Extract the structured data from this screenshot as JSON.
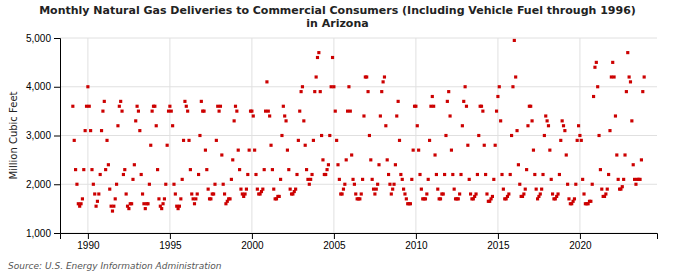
{
  "chart_data": {
    "type": "scatter",
    "title": "Monthly Natural Gas Deliveries to Commercial Consumers (Including Vehicle Fuel through 1996)\nin Arizona",
    "ylabel": "Million Cubic Feet",
    "annotations": [
      "Source: U.S. Energy Information Administration"
    ],
    "color": "#cc0000",
    "marker": "square",
    "grid": true,
    "xlim": [
      1988.3,
      2024.7
    ],
    "xticks": [
      1990,
      1995,
      2000,
      2005,
      2010,
      2015,
      2020
    ],
    "ylim": [
      1000,
      5000
    ],
    "yticks": [
      {
        "value": 1000,
        "label": "1,000"
      },
      {
        "value": 2000,
        "label": "2,000"
      },
      {
        "value": 3000,
        "label": "3,000"
      },
      {
        "value": 4000,
        "label": "4,000"
      },
      {
        "value": 5000,
        "label": "5,000"
      }
    ],
    "x": [
      1989.083,
      1989.167,
      1989.25,
      1989.333,
      1989.417,
      1989.5,
      1989.583,
      1989.667,
      1989.75,
      1989.833,
      1989.917,
      1990.0,
      1990.083,
      1990.167,
      1990.25,
      1990.333,
      1990.417,
      1990.5,
      1990.583,
      1990.667,
      1990.75,
      1990.833,
      1990.917,
      1991.0,
      1991.083,
      1991.167,
      1991.25,
      1991.333,
      1991.417,
      1991.5,
      1991.583,
      1991.667,
      1991.75,
      1991.833,
      1991.917,
      1992.0,
      1992.083,
      1992.167,
      1992.25,
      1992.333,
      1992.417,
      1992.5,
      1992.583,
      1992.667,
      1992.75,
      1992.833,
      1992.917,
      1993.0,
      1993.083,
      1993.167,
      1993.25,
      1993.333,
      1993.417,
      1993.5,
      1993.583,
      1993.667,
      1993.75,
      1993.833,
      1993.917,
      1994.0,
      1994.083,
      1994.167,
      1994.25,
      1994.333,
      1994.417,
      1994.5,
      1994.583,
      1994.667,
      1994.75,
      1994.833,
      1994.917,
      1995.0,
      1995.083,
      1995.167,
      1995.25,
      1995.333,
      1995.417,
      1995.5,
      1995.583,
      1995.667,
      1995.75,
      1995.833,
      1995.917,
      1996.0,
      1996.083,
      1996.167,
      1996.25,
      1996.333,
      1996.417,
      1996.5,
      1996.583,
      1996.667,
      1996.75,
      1996.833,
      1996.917,
      1997.0,
      1997.083,
      1997.167,
      1997.25,
      1997.333,
      1997.417,
      1997.5,
      1997.583,
      1997.667,
      1997.75,
      1997.833,
      1997.917,
      1998.0,
      1998.083,
      1998.167,
      1998.25,
      1998.333,
      1998.417,
      1998.5,
      1998.583,
      1998.667,
      1998.75,
      1998.833,
      1998.917,
      1999.0,
      1999.083,
      1999.167,
      1999.25,
      1999.333,
      1999.417,
      1999.5,
      1999.583,
      1999.667,
      1999.75,
      1999.833,
      1999.917,
      2000.0,
      2000.083,
      2000.167,
      2000.25,
      2000.333,
      2000.417,
      2000.5,
      2000.583,
      2000.667,
      2000.75,
      2000.833,
      2000.917,
      2001.0,
      2001.083,
      2001.167,
      2001.25,
      2001.333,
      2001.417,
      2001.5,
      2001.583,
      2001.667,
      2001.75,
      2001.833,
      2001.917,
      2002.0,
      2002.083,
      2002.167,
      2002.25,
      2002.333,
      2002.417,
      2002.5,
      2002.583,
      2002.667,
      2002.75,
      2002.833,
      2002.917,
      2003.0,
      2003.083,
      2003.167,
      2003.25,
      2003.333,
      2003.417,
      2003.5,
      2003.583,
      2003.667,
      2003.75,
      2003.833,
      2003.917,
      2004.0,
      2004.083,
      2004.167,
      2004.25,
      2004.333,
      2004.417,
      2004.5,
      2004.583,
      2004.667,
      2004.75,
      2004.833,
      2004.917,
      2005.0,
      2005.083,
      2005.167,
      2005.25,
      2005.333,
      2005.417,
      2005.5,
      2005.583,
      2005.667,
      2005.75,
      2005.833,
      2005.917,
      2006.0,
      2006.083,
      2006.167,
      2006.25,
      2006.333,
      2006.417,
      2006.5,
      2006.583,
      2006.667,
      2006.75,
      2006.833,
      2006.917,
      2007.0,
      2007.083,
      2007.167,
      2007.25,
      2007.333,
      2007.417,
      2007.5,
      2007.583,
      2007.667,
      2007.75,
      2007.833,
      2007.917,
      2008.0,
      2008.083,
      2008.167,
      2008.25,
      2008.333,
      2008.417,
      2008.5,
      2008.583,
      2008.667,
      2008.75,
      2008.833,
      2008.917,
      2009.0,
      2009.083,
      2009.167,
      2009.25,
      2009.333,
      2009.417,
      2009.5,
      2009.583,
      2009.667,
      2009.75,
      2009.833,
      2009.917,
      2010.0,
      2010.083,
      2010.167,
      2010.25,
      2010.333,
      2010.417,
      2010.5,
      2010.583,
      2010.667,
      2010.75,
      2010.833,
      2010.917,
      2011.0,
      2011.083,
      2011.167,
      2011.25,
      2011.333,
      2011.417,
      2011.5,
      2011.583,
      2011.667,
      2011.75,
      2011.833,
      2011.917,
      2012.0,
      2012.083,
      2012.167,
      2012.25,
      2012.333,
      2012.417,
      2012.5,
      2012.583,
      2012.667,
      2012.75,
      2012.833,
      2012.917,
      2013.0,
      2013.083,
      2013.167,
      2013.25,
      2013.333,
      2013.417,
      2013.5,
      2013.583,
      2013.667,
      2013.75,
      2013.833,
      2013.917,
      2014.0,
      2014.083,
      2014.167,
      2014.25,
      2014.333,
      2014.417,
      2014.5,
      2014.583,
      2014.667,
      2014.75,
      2014.833,
      2014.917,
      2015.0,
      2015.083,
      2015.167,
      2015.25,
      2015.333,
      2015.417,
      2015.5,
      2015.583,
      2015.667,
      2015.75,
      2015.833,
      2015.917,
      2016.0,
      2016.083,
      2016.167,
      2016.25,
      2016.333,
      2016.417,
      2016.5,
      2016.583,
      2016.667,
      2016.75,
      2016.833,
      2016.917,
      2017.0,
      2017.083,
      2017.167,
      2017.25,
      2017.333,
      2017.417,
      2017.5,
      2017.583,
      2017.667,
      2017.75,
      2017.833,
      2017.917,
      2018.0,
      2018.083,
      2018.167,
      2018.25,
      2018.333,
      2018.417,
      2018.5,
      2018.583,
      2018.667,
      2018.75,
      2018.833,
      2018.917,
      2019.0,
      2019.083,
      2019.167,
      2019.25,
      2019.333,
      2019.417,
      2019.5,
      2019.583,
      2019.667,
      2019.75,
      2019.833,
      2019.917,
      2020.0,
      2020.083,
      2020.167,
      2020.25,
      2020.333,
      2020.417,
      2020.5,
      2020.583,
      2020.667,
      2020.75,
      2020.833,
      2020.917,
      2021.0,
      2021.083,
      2021.167,
      2021.25,
      2021.333,
      2021.417,
      2021.5,
      2021.583,
      2021.667,
      2021.75,
      2021.833,
      2021.917,
      2022.0,
      2022.083,
      2022.167,
      2022.25,
      2022.333,
      2022.417,
      2022.5,
      2022.583,
      2022.667,
      2022.75,
      2022.833,
      2022.917,
      2023.0,
      2023.083,
      2023.167,
      2023.25,
      2023.333,
      2023.417,
      2023.5,
      2023.583,
      2023.667,
      2023.75,
      2023.833,
      2023.917
    ],
    "values": [
      3600,
      2900,
      2300,
      2000,
      1600,
      1550,
      1600,
      1700,
      2300,
      3100,
      3600,
      4000,
      3600,
      3100,
      2300,
      2000,
      1800,
      1550,
      1650,
      1800,
      2200,
      3100,
      3500,
      3700,
      2300,
      2900,
      2400,
      1900,
      1550,
      1450,
      1550,
      1700,
      2000,
      3200,
      3600,
      3700,
      3500,
      2200,
      2300,
      1800,
      1550,
      1500,
      1600,
      1600,
      2100,
      2400,
      3300,
      3600,
      3500,
      3100,
      2200,
      1800,
      1600,
      1500,
      1600,
      1600,
      2000,
      2800,
      3500,
      3600,
      3600,
      3200,
      2300,
      1700,
      1550,
      1500,
      1600,
      1700,
      2000,
      2800,
      3500,
      3600,
      3500,
      3200,
      2000,
      1800,
      1550,
      1500,
      1550,
      1700,
      2100,
      2900,
      3700,
      3600,
      3500,
      2900,
      2300,
      1800,
      1700,
      1600,
      1700,
      1800,
      2200,
      3000,
      3700,
      3500,
      3500,
      2700,
      2300,
      1900,
      1700,
      1700,
      1800,
      1800,
      2000,
      2900,
      3600,
      3500,
      3600,
      2600,
      2000,
      1800,
      1600,
      1650,
      1700,
      1700,
      2100,
      2500,
      3300,
      3600,
      3500,
      2700,
      2300,
      1900,
      1800,
      1750,
      1800,
      1900,
      2200,
      2700,
      3500,
      3500,
      3400,
      2700,
      2200,
      1900,
      1800,
      1800,
      1850,
      1900,
      2300,
      3500,
      4100,
      3500,
      3400,
      2800,
      2300,
      1900,
      1700,
      1700,
      1750,
      1750,
      2100,
      3000,
      3600,
      3400,
      3300,
      2700,
      2300,
      1900,
      1800,
      1800,
      1850,
      1900,
      2200,
      2900,
      3500,
      3900,
      4000,
      3300,
      2800,
      2300,
      2100,
      2000,
      2100,
      2200,
      2900,
      3900,
      4200,
      4600,
      4700,
      3900,
      3000,
      2500,
      2200,
      2200,
      2300,
      2400,
      3000,
      4000,
      4600,
      4000,
      3500,
      2900,
      2400,
      2100,
      1800,
      1800,
      1900,
      2000,
      2500,
      3500,
      4000,
      3500,
      2600,
      2100,
      2000,
      1800,
      1700,
      1700,
      1700,
      1800,
      2100,
      3400,
      4200,
      4200,
      3900,
      3000,
      2500,
      2100,
      1900,
      1800,
      1900,
      2000,
      2400,
      3400,
      3900,
      4100,
      4200,
      3200,
      2500,
      2200,
      2000,
      1800,
      1900,
      2000,
      2400,
      3400,
      3700,
      2900,
      2200,
      2100,
      1900,
      1800,
      1700,
      1600,
      1600,
      1600,
      2100,
      2700,
      3600,
      3600,
      3200,
      2700,
      2200,
      1900,
      1700,
      1700,
      1700,
      1800,
      2100,
      2900,
      3600,
      3800,
      3600,
      2600,
      2200,
      1900,
      1700,
      1700,
      1800,
      1800,
      2200,
      3000,
      3700,
      3900,
      3400,
      2700,
      2200,
      1900,
      1700,
      1700,
      1700,
      1800,
      2200,
      3200,
      3700,
      4000,
      3600,
      2800,
      2100,
      1800,
      1700,
      1700,
      1750,
      1800,
      2200,
      3000,
      3600,
      3600,
      3500,
      2800,
      2200,
      1800,
      1650,
      1650,
      1700,
      1750,
      2100,
      2800,
      3500,
      3800,
      4000,
      3300,
      2200,
      1900,
      1700,
      1700,
      1750,
      1800,
      2200,
      3000,
      4000,
      4950,
      4200,
      3100,
      2400,
      2000,
      1750,
      1750,
      1800,
      1900,
      2300,
      3200,
      3600,
      3600,
      3300,
      2700,
      2200,
      1900,
      1700,
      1750,
      1800,
      1900,
      2200,
      3000,
      3400,
      3300,
      3200,
      2700,
      2100,
      1800,
      1700,
      1700,
      1750,
      1800,
      2200,
      2900,
      3300,
      3200,
      3100,
      2600,
      2000,
      1700,
      1600,
      1600,
      1650,
      1700,
      2000,
      2900,
      3200,
      3000,
      2900,
      2100,
      1800,
      1600,
      1600,
      1600,
      1650,
      1650,
      2000,
      3800,
      4400,
      4500,
      4000,
      3000,
      2300,
      1900,
      1750,
      1750,
      1800,
      1900,
      2200,
      3100,
      4200,
      4500,
      4200,
      3400,
      2600,
      2100,
      1900,
      1900,
      1950,
      2100,
      2600,
      3900,
      4700,
      4200,
      4100,
      3300,
      2400,
      2100,
      2000,
      2100,
      2100,
      2100,
      2500,
      3900,
      4200
    ]
  }
}
